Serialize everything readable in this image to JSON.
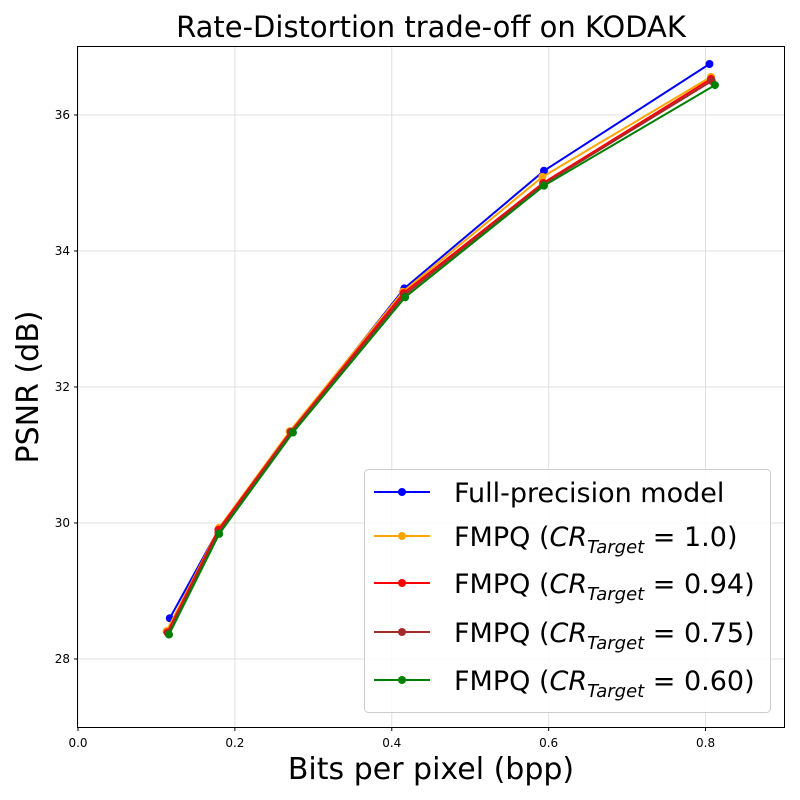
{
  "chart_data": {
    "type": "line",
    "title": "Rate-Distortion trade-off on KODAK",
    "xlabel": "Bits per pixel (bpp)",
    "ylabel": "PSNR (dB)",
    "xlim": [
      0.0,
      0.9
    ],
    "ylim": [
      27.0,
      37.0
    ],
    "xticks": [
      0.0,
      0.2,
      0.4,
      0.6,
      0.8
    ],
    "xtick_labels": [
      "0.0",
      "0.2",
      "0.4",
      "0.6",
      "0.8"
    ],
    "yticks": [
      28,
      30,
      32,
      34,
      36
    ],
    "ytick_labels": [
      "28",
      "30",
      "32",
      "34",
      "36"
    ],
    "grid": true,
    "legend_position": "lower-right",
    "series": [
      {
        "name": "Full-precision model",
        "legend_prefix": "Full-precision model",
        "legend_cr": "",
        "color": "#0000ff",
        "x": [
          0.117,
          0.18,
          0.272,
          0.416,
          0.594,
          0.805
        ],
        "y": [
          28.6,
          29.92,
          31.35,
          33.45,
          35.18,
          36.75
        ]
      },
      {
        "name": "FMPQ (CR_Target = 1.0)",
        "legend_prefix": "FMPQ (",
        "legend_cr": "1.0",
        "color": "#ffa500",
        "x": [
          0.113,
          0.18,
          0.27,
          0.414,
          0.592,
          0.807
        ],
        "y": [
          28.41,
          29.93,
          31.35,
          33.4,
          35.09,
          36.56
        ]
      },
      {
        "name": "FMPQ (CR_Target = 0.94)",
        "legend_prefix": "FMPQ (",
        "legend_cr": "0.94",
        "color": "#ff0000",
        "x": [
          0.114,
          0.179,
          0.271,
          0.415,
          0.593,
          0.807
        ],
        "y": [
          28.39,
          29.9,
          31.34,
          33.38,
          35.0,
          36.53
        ]
      },
      {
        "name": "FMPQ (CR_Target = 0.75)",
        "legend_prefix": "FMPQ (",
        "legend_cr": "0.75",
        "color": "#a52a2a",
        "x": [
          0.115,
          0.179,
          0.272,
          0.416,
          0.593,
          0.808
        ],
        "y": [
          28.38,
          29.86,
          31.34,
          33.35,
          34.98,
          36.5
        ]
      },
      {
        "name": "FMPQ (CR_Target = 0.60)",
        "legend_prefix": "FMPQ (",
        "legend_cr": "0.60",
        "color": "#008000",
        "x": [
          0.116,
          0.18,
          0.274,
          0.417,
          0.594,
          0.812
        ],
        "y": [
          28.36,
          29.84,
          31.33,
          33.32,
          34.96,
          36.44
        ]
      }
    ]
  }
}
